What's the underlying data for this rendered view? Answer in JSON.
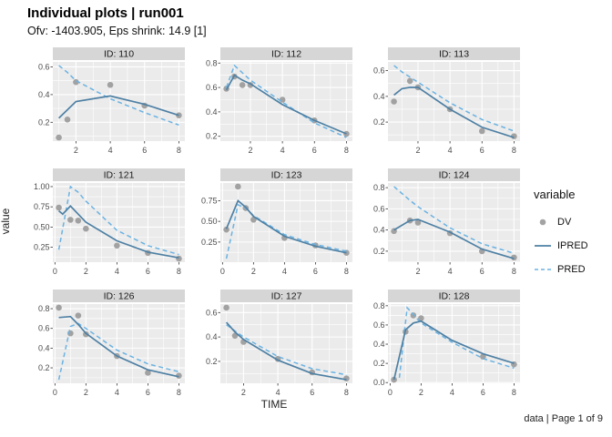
{
  "header": {
    "title": "Individual plots | run001",
    "subtitle": "Ofv: -1403.905, Eps shrink: 14.9 [1]"
  },
  "axes": {
    "x_label": "TIME",
    "y_label": "value"
  },
  "caption": "data | Page 1 of 9",
  "legend": {
    "title": "variable",
    "entries": [
      {
        "label": "DV",
        "type": "point"
      },
      {
        "label": "IPRED",
        "type": "solid-line"
      },
      {
        "label": "PRED",
        "type": "dashed-line"
      }
    ]
  },
  "colors": {
    "dv": "#999999",
    "ipred": "#4e80a4",
    "pred": "#6ab2e2",
    "panel_bg": "#ebebeb",
    "strip_bg": "#d6d6d6",
    "grid": "#ffffff",
    "tick_mark": "#333333",
    "tick_text": "#4d4d4d"
  },
  "chart_data": {
    "type": "line",
    "subtype": "faceted line + scatter, free scales",
    "title": "Individual plots | run001",
    "subtitle": "Ofv: -1403.905, Eps shrink: 14.9 [1]",
    "xlabel": "TIME",
    "ylabel": "value",
    "legend_title": "variable",
    "series_names": [
      "DV",
      "IPRED",
      "PRED"
    ],
    "facets": [
      {
        "id_label": "ID: 110",
        "x_ticks": [
          "2",
          "4",
          "6",
          "8"
        ],
        "y_ticks": [
          "0.2",
          "0.4",
          "0.6"
        ],
        "DV": [
          [
            1,
            0.09
          ],
          [
            1.5,
            0.22
          ],
          [
            2,
            0.49
          ],
          [
            4,
            0.47
          ],
          [
            6,
            0.32
          ],
          [
            8,
            0.25
          ]
        ],
        "IPRED": [
          [
            1,
            0.23
          ],
          [
            1.5,
            0.29
          ],
          [
            2,
            0.35
          ],
          [
            4,
            0.39
          ],
          [
            6,
            0.33
          ],
          [
            8,
            0.25
          ]
        ],
        "PRED": [
          [
            1,
            0.61
          ],
          [
            1.5,
            0.56
          ],
          [
            2,
            0.5
          ],
          [
            4,
            0.37
          ],
          [
            6,
            0.27
          ],
          [
            8,
            0.18
          ]
        ]
      },
      {
        "id_label": "ID: 112",
        "x_ticks": [
          "2",
          "4",
          "6",
          "8"
        ],
        "y_ticks": [
          "0.2",
          "0.4",
          "0.6",
          "0.8"
        ],
        "DV": [
          [
            0.5,
            0.59
          ],
          [
            1,
            0.69
          ],
          [
            1.5,
            0.62
          ],
          [
            2,
            0.62
          ],
          [
            4,
            0.5
          ],
          [
            6,
            0.33
          ],
          [
            8,
            0.22
          ]
        ],
        "IPRED": [
          [
            0.5,
            0.58
          ],
          [
            1,
            0.7
          ],
          [
            1.5,
            0.66
          ],
          [
            2,
            0.63
          ],
          [
            4,
            0.46
          ],
          [
            6,
            0.33
          ],
          [
            8,
            0.22
          ]
        ],
        "PRED": [
          [
            0.5,
            0.6
          ],
          [
            1,
            0.78
          ],
          [
            1.5,
            0.72
          ],
          [
            2,
            0.66
          ],
          [
            4,
            0.48
          ],
          [
            6,
            0.31
          ],
          [
            8,
            0.19
          ]
        ]
      },
      {
        "id_label": "ID: 113",
        "x_ticks": [
          "2",
          "4",
          "6",
          "8"
        ],
        "y_ticks": [
          "0.2",
          "0.4",
          "0.6"
        ],
        "DV": [
          [
            0.5,
            0.36
          ],
          [
            1.5,
            0.52
          ],
          [
            2,
            0.47
          ],
          [
            4,
            0.3
          ],
          [
            6,
            0.13
          ],
          [
            8,
            0.09
          ]
        ],
        "IPRED": [
          [
            0.5,
            0.41
          ],
          [
            1,
            0.46
          ],
          [
            1.5,
            0.47
          ],
          [
            2,
            0.47
          ],
          [
            4,
            0.3
          ],
          [
            6,
            0.16
          ],
          [
            8,
            0.08
          ]
        ],
        "PRED": [
          [
            0.5,
            0.64
          ],
          [
            1,
            0.59
          ],
          [
            1.5,
            0.55
          ],
          [
            2,
            0.51
          ],
          [
            4,
            0.35
          ],
          [
            6,
            0.22
          ],
          [
            8,
            0.13
          ]
        ]
      },
      {
        "id_label": "ID: 121",
        "x_ticks": [
          "0",
          "2",
          "4",
          "6",
          "8"
        ],
        "y_ticks": [
          "0.25",
          "0.50",
          "0.75",
          "1.00"
        ],
        "DV": [
          [
            0.25,
            0.74
          ],
          [
            1,
            0.59
          ],
          [
            1.5,
            0.58
          ],
          [
            2,
            0.48
          ],
          [
            4,
            0.27
          ],
          [
            6,
            0.18
          ],
          [
            8,
            0.11
          ]
        ],
        "IPRED": [
          [
            0.25,
            0.7
          ],
          [
            0.5,
            0.66
          ],
          [
            1,
            0.76
          ],
          [
            1.5,
            0.66
          ],
          [
            2,
            0.56
          ],
          [
            4,
            0.33
          ],
          [
            6,
            0.19
          ],
          [
            8,
            0.12
          ]
        ],
        "PRED": [
          [
            0.25,
            0.22
          ],
          [
            1,
            1.0
          ],
          [
            1.5,
            0.93
          ],
          [
            2,
            0.82
          ],
          [
            4,
            0.46
          ],
          [
            6,
            0.27
          ],
          [
            8,
            0.16
          ]
        ]
      },
      {
        "id_label": "ID: 123",
        "x_ticks": [
          "0",
          "2",
          "4",
          "6",
          "8"
        ],
        "y_ticks": [
          "0.25",
          "0.50",
          "0.75"
        ],
        "DV": [
          [
            0.25,
            0.4
          ],
          [
            1,
            0.92
          ],
          [
            1.5,
            0.66
          ],
          [
            2,
            0.52
          ],
          [
            4,
            0.3
          ],
          [
            6,
            0.21
          ],
          [
            8,
            0.12
          ]
        ],
        "IPRED": [
          [
            0.25,
            0.41
          ],
          [
            1,
            0.75
          ],
          [
            1.5,
            0.67
          ],
          [
            2,
            0.56
          ],
          [
            4,
            0.32
          ],
          [
            6,
            0.2
          ],
          [
            8,
            0.12
          ]
        ],
        "PRED": [
          [
            0.25,
            0.05
          ],
          [
            1,
            0.7
          ],
          [
            1.5,
            0.66
          ],
          [
            2,
            0.57
          ],
          [
            4,
            0.34
          ],
          [
            6,
            0.22
          ],
          [
            8,
            0.14
          ]
        ]
      },
      {
        "id_label": "ID: 124",
        "x_ticks": [
          "2",
          "4",
          "6",
          "8"
        ],
        "y_ticks": [
          "0.2",
          "0.4",
          "0.6",
          "0.8"
        ],
        "DV": [
          [
            0.5,
            0.39
          ],
          [
            1.5,
            0.49
          ],
          [
            2,
            0.47
          ],
          [
            4,
            0.37
          ],
          [
            6,
            0.2
          ],
          [
            8,
            0.14
          ]
        ],
        "IPRED": [
          [
            0.5,
            0.4
          ],
          [
            1.5,
            0.49
          ],
          [
            2,
            0.5
          ],
          [
            4,
            0.38
          ],
          [
            6,
            0.22
          ],
          [
            8,
            0.13
          ]
        ],
        "PRED": [
          [
            0.5,
            0.81
          ],
          [
            1.5,
            0.68
          ],
          [
            2,
            0.62
          ],
          [
            4,
            0.42
          ],
          [
            6,
            0.27
          ],
          [
            8,
            0.18
          ]
        ]
      },
      {
        "id_label": "ID: 126",
        "x_ticks": [
          "0",
          "2",
          "4",
          "6",
          "8"
        ],
        "y_ticks": [
          "0.2",
          "0.4",
          "0.6",
          "0.8"
        ],
        "DV": [
          [
            0.25,
            0.81
          ],
          [
            1,
            0.55
          ],
          [
            1.5,
            0.73
          ],
          [
            2,
            0.54
          ],
          [
            4,
            0.32
          ],
          [
            6,
            0.15
          ],
          [
            8,
            0.12
          ]
        ],
        "IPRED": [
          [
            0.25,
            0.71
          ],
          [
            1,
            0.72
          ],
          [
            1.5,
            0.64
          ],
          [
            2,
            0.55
          ],
          [
            4,
            0.32
          ],
          [
            6,
            0.18
          ],
          [
            8,
            0.11
          ]
        ],
        "PRED": [
          [
            0.25,
            0.08
          ],
          [
            1,
            0.62
          ],
          [
            1.5,
            0.65
          ],
          [
            2,
            0.6
          ],
          [
            4,
            0.38
          ],
          [
            6,
            0.24
          ],
          [
            8,
            0.16
          ]
        ]
      },
      {
        "id_label": "ID: 127",
        "x_ticks": [
          "2",
          "4",
          "6",
          "8"
        ],
        "y_ticks": [
          "0.2",
          "0.4",
          "0.6"
        ],
        "DV": [
          [
            1,
            0.64
          ],
          [
            1.5,
            0.41
          ],
          [
            2,
            0.36
          ],
          [
            4,
            0.22
          ],
          [
            6,
            0.11
          ],
          [
            8,
            0.06
          ]
        ],
        "IPRED": [
          [
            1,
            0.52
          ],
          [
            1.5,
            0.44
          ],
          [
            2,
            0.38
          ],
          [
            4,
            0.21
          ],
          [
            6,
            0.1
          ],
          [
            8,
            0.05
          ]
        ],
        "PRED": [
          [
            1,
            0.5
          ],
          [
            1.5,
            0.45
          ],
          [
            2,
            0.4
          ],
          [
            4,
            0.24
          ],
          [
            6,
            0.14
          ],
          [
            8,
            0.09
          ]
        ]
      },
      {
        "id_label": "ID: 128",
        "x_ticks": [
          "0",
          "2",
          "4",
          "6",
          "8"
        ],
        "y_ticks": [
          "0.0",
          "0.2",
          "0.4",
          "0.6",
          "0.8"
        ],
        "DV": [
          [
            0.25,
            0.03
          ],
          [
            1,
            0.53
          ],
          [
            1.5,
            0.7
          ],
          [
            2,
            0.67
          ],
          [
            6,
            0.27
          ],
          [
            8,
            0.19
          ]
        ],
        "IPRED": [
          [
            0.25,
            0.03
          ],
          [
            1,
            0.55
          ],
          [
            1.5,
            0.62
          ],
          [
            2,
            0.64
          ],
          [
            4,
            0.44
          ],
          [
            6,
            0.3
          ],
          [
            8,
            0.2
          ]
        ],
        "PRED": [
          [
            0.6,
            0.05
          ],
          [
            1.1,
            0.78
          ],
          [
            1.5,
            0.71
          ],
          [
            2,
            0.62
          ],
          [
            4,
            0.42
          ],
          [
            6,
            0.25
          ],
          [
            8,
            0.15
          ]
        ]
      }
    ]
  }
}
